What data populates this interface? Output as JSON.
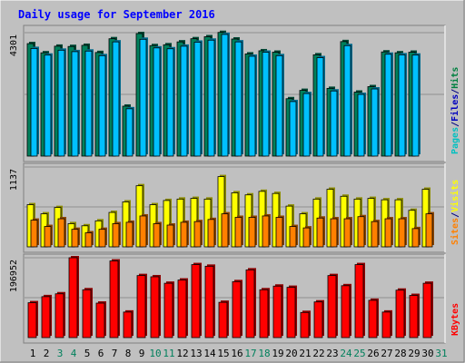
{
  "chart_data": {
    "type": "bar",
    "title": "Daily usage for September 2016",
    "days": [
      "1",
      "2",
      "3",
      "4",
      "5",
      "6",
      "7",
      "8",
      "9",
      "10",
      "11",
      "12",
      "13",
      "14",
      "15",
      "16",
      "17",
      "18",
      "19",
      "20",
      "21",
      "22",
      "23",
      "24",
      "25",
      "26",
      "27",
      "28",
      "29",
      "30",
      "31"
    ],
    "weekend_days": [
      "3",
      "4",
      "10",
      "11",
      "17",
      "18",
      "24",
      "25",
      "31"
    ],
    "panels": [
      {
        "id": "hits",
        "max_label": "4301",
        "ymax": 4301,
        "legend": [
          {
            "text": "Pages",
            "color": "#00c0c0"
          },
          {
            "text": "/",
            "color": "#000080"
          },
          {
            "text": "Files",
            "color": "#0000c0"
          },
          {
            "text": "/",
            "color": "#000080"
          },
          {
            "text": "Hits",
            "color": "#008040"
          }
        ],
        "series": [
          {
            "name": "Hits",
            "color": "#00805c",
            "values": [
              3920,
              3600,
              3830,
              3820,
              3860,
              3610,
              4090,
              1740,
              4270,
              3850,
              3880,
              3980,
              4090,
              4160,
              4310,
              4080,
              3560,
              3670,
              3620,
              2000,
              2290,
              3530,
              2360,
              3990,
              2230,
              2420,
              3630,
              3600,
              3620,
              null,
              null
            ]
          },
          {
            "name": "Files",
            "color": "#00c0ff",
            "values": [
              3750,
              3520,
              3690,
              3640,
              3660,
              3500,
              3980,
              1650,
              4070,
              3770,
              3740,
              3830,
              3970,
              4040,
              4240,
              3980,
              3480,
              3620,
              3500,
              1900,
              2180,
              3430,
              2270,
              3850,
              2150,
              2340,
              3550,
              3530,
              3520,
              null,
              null
            ]
          }
        ]
      },
      {
        "id": "visits",
        "max_label": "1137",
        "ymax": 1137,
        "legend": [
          {
            "text": "Sites",
            "color": "#ff8000"
          },
          {
            "text": "/",
            "color": "#000080"
          },
          {
            "text": "Visits",
            "color": "#ffff00"
          }
        ],
        "series": [
          {
            "name": "Visits",
            "color": "#ffff00",
            "values": [
              600,
              470,
              560,
              330,
              300,
              370,
              490,
              640,
              870,
              600,
              660,
              680,
              690,
              680,
              1000,
              770,
              740,
              790,
              760,
              580,
              470,
              680,
              820,
              720,
              680,
              690,
              670,
              670,
              520,
              820,
              null
            ]
          },
          {
            "name": "Sites",
            "color": "#ff8000",
            "values": [
              380,
              290,
              400,
              250,
              200,
              250,
              330,
              350,
              440,
              330,
              310,
              350,
              360,
              390,
              470,
              420,
              420,
              440,
              420,
              290,
              270,
              410,
              400,
              400,
              430,
              360,
              400,
              400,
              260,
              470,
              null
            ]
          }
        ]
      },
      {
        "id": "kbytes",
        "max_label": "196952",
        "ymax": 196952,
        "legend": [
          {
            "text": "KBytes",
            "color": "#ff0000"
          }
        ],
        "series": [
          {
            "name": "KBytes",
            "color": "#ff0000",
            "values": [
              86000,
              101000,
              108000,
              196952,
              118000,
              85000,
              189000,
              63000,
              153000,
              150000,
              134000,
              142000,
              180000,
              176000,
              87000,
              138000,
              167000,
              118000,
              127000,
              124000,
              62000,
              88000,
              153000,
              128000,
              180000,
              92000,
              63000,
              117000,
              104000,
              134000,
              null
            ]
          }
        ]
      }
    ]
  }
}
